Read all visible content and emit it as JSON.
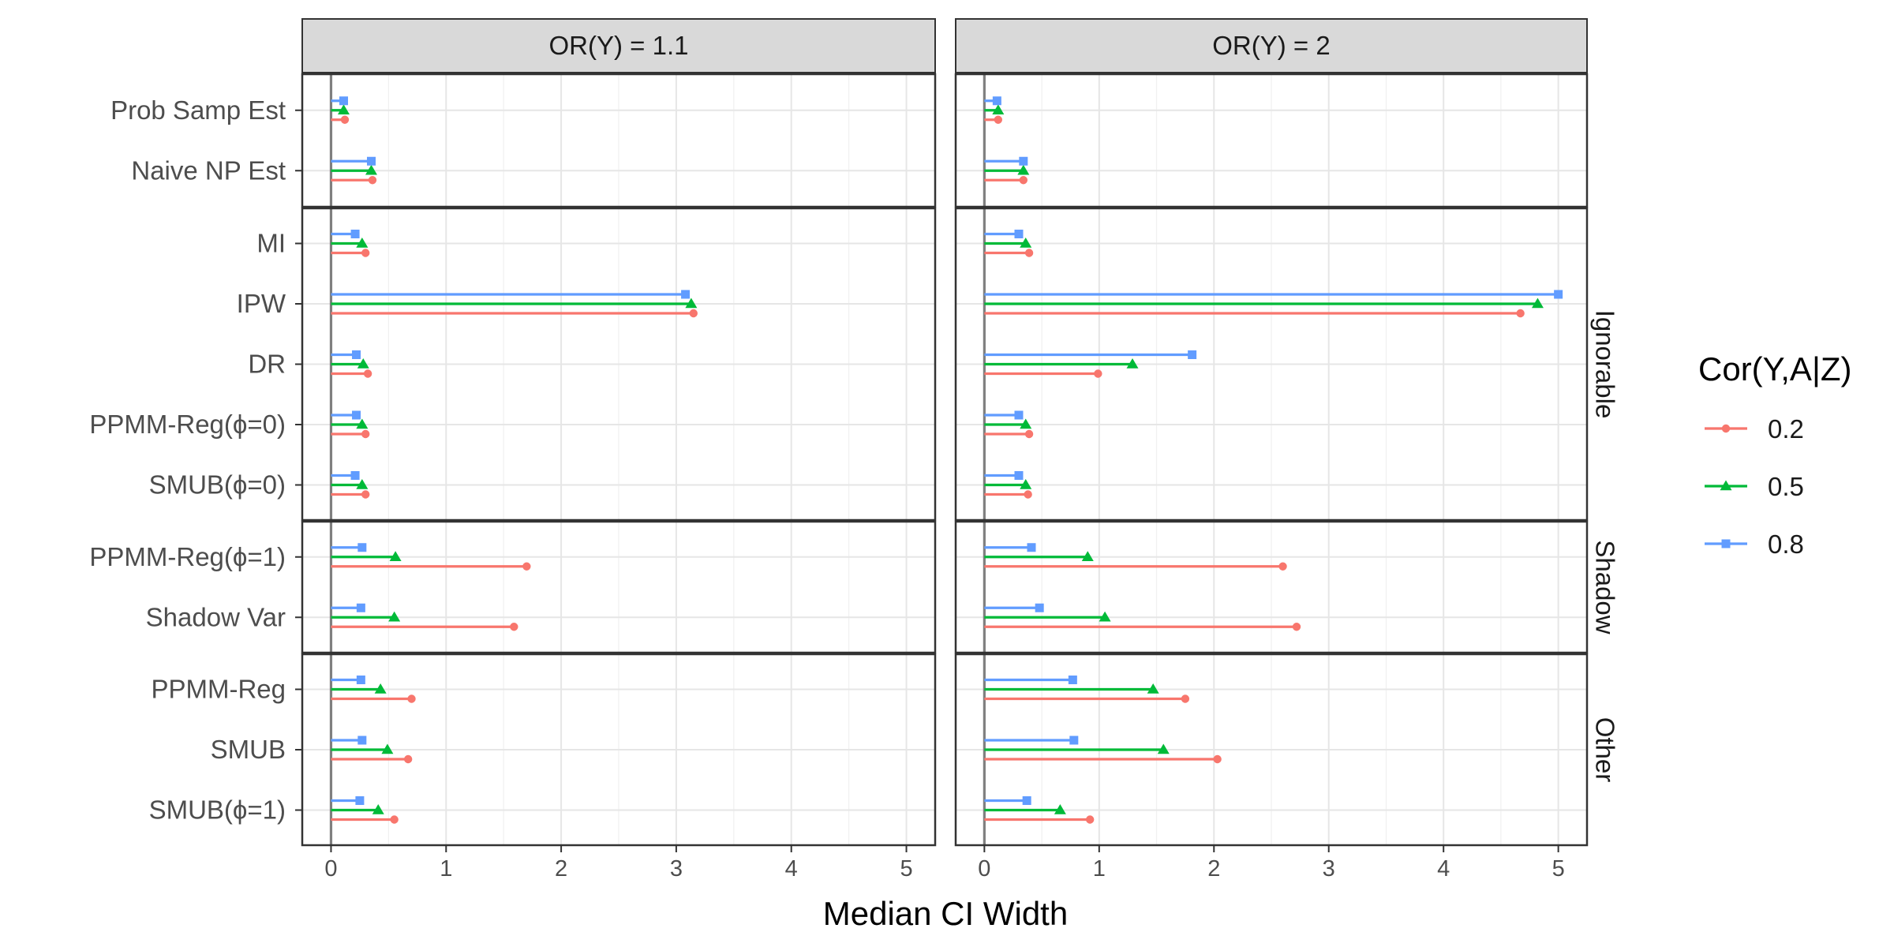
{
  "chart_data": {
    "type": "lollipop",
    "xlabel": "Median CI Width",
    "xlim": [
      -0.25,
      5.25
    ],
    "xticks": [
      0,
      1,
      2,
      3,
      4,
      5
    ],
    "grid": true,
    "columns": [
      "OR(Y) = 1.1",
      "OR(Y) = 2"
    ],
    "row_groups": [
      {
        "label": "",
        "methods": [
          "Prob Samp Est",
          "Naive NP Est"
        ]
      },
      {
        "label": "Ignorable",
        "methods": [
          "MI",
          "IPW",
          "DR",
          "PPMM-Reg(ϕ=0)",
          "SMUB(ϕ=0)"
        ]
      },
      {
        "label": "Shadow",
        "methods": [
          "PPMM-Reg(ϕ=1)",
          "Shadow Var"
        ]
      },
      {
        "label": "Other",
        "methods": [
          "PPMM-Reg",
          "SMUB",
          "SMUB(ϕ=1)"
        ]
      }
    ],
    "legend": {
      "title": "Cor(Y,A|Z)",
      "position": "right",
      "entries": [
        {
          "label": "0.2",
          "color": "#F8766D",
          "shape": "circle"
        },
        {
          "label": "0.5",
          "color": "#00BA38",
          "shape": "triangle"
        },
        {
          "label": "0.8",
          "color": "#619CFF",
          "shape": "square"
        }
      ]
    },
    "series": [
      {
        "name": "0.2",
        "color": "#F8766D",
        "shape": "circle",
        "values": {
          "OR(Y) = 1.1": {
            "Prob Samp Est": 0.12,
            "Naive NP Est": 0.36,
            "MI": 0.3,
            "IPW": 3.15,
            "DR": 0.32,
            "PPMM-Reg(ϕ=0)": 0.3,
            "SMUB(ϕ=0)": 0.3,
            "PPMM-Reg(ϕ=1)": 1.7,
            "Shadow Var": 1.59,
            "PPMM-Reg": 0.7,
            "SMUB": 0.67,
            "SMUB(ϕ=1)": 0.55
          },
          "OR(Y) = 2": {
            "Prob Samp Est": 0.12,
            "Naive NP Est": 0.34,
            "MI": 0.39,
            "IPW": 4.67,
            "DR": 0.99,
            "PPMM-Reg(ϕ=0)": 0.39,
            "SMUB(ϕ=0)": 0.38,
            "PPMM-Reg(ϕ=1)": 2.6,
            "Shadow Var": 2.72,
            "PPMM-Reg": 1.75,
            "SMUB": 2.03,
            "SMUB(ϕ=1)": 0.92
          }
        }
      },
      {
        "name": "0.5",
        "color": "#00BA38",
        "shape": "triangle",
        "values": {
          "OR(Y) = 1.1": {
            "Prob Samp Est": 0.11,
            "Naive NP Est": 0.35,
            "MI": 0.27,
            "IPW": 3.13,
            "DR": 0.28,
            "PPMM-Reg(ϕ=0)": 0.27,
            "SMUB(ϕ=0)": 0.27,
            "PPMM-Reg(ϕ=1)": 0.56,
            "Shadow Var": 0.55,
            "PPMM-Reg": 0.43,
            "SMUB": 0.49,
            "SMUB(ϕ=1)": 0.41
          },
          "OR(Y) = 2": {
            "Prob Samp Est": 0.12,
            "Naive NP Est": 0.34,
            "MI": 0.36,
            "IPW": 4.82,
            "DR": 1.29,
            "PPMM-Reg(ϕ=0)": 0.36,
            "SMUB(ϕ=0)": 0.36,
            "PPMM-Reg(ϕ=1)": 0.9,
            "Shadow Var": 1.05,
            "PPMM-Reg": 1.47,
            "SMUB": 1.56,
            "SMUB(ϕ=1)": 0.66
          }
        }
      },
      {
        "name": "0.8",
        "color": "#619CFF",
        "shape": "square",
        "values": {
          "OR(Y) = 1.1": {
            "Prob Samp Est": 0.11,
            "Naive NP Est": 0.35,
            "MI": 0.21,
            "IPW": 3.08,
            "DR": 0.22,
            "PPMM-Reg(ϕ=0)": 0.22,
            "SMUB(ϕ=0)": 0.21,
            "PPMM-Reg(ϕ=1)": 0.27,
            "Shadow Var": 0.26,
            "PPMM-Reg": 0.26,
            "SMUB": 0.27,
            "SMUB(ϕ=1)": 0.25
          },
          "OR(Y) = 2": {
            "Prob Samp Est": 0.11,
            "Naive NP Est": 0.34,
            "MI": 0.3,
            "IPW": 5.0,
            "DR": 1.81,
            "PPMM-Reg(ϕ=0)": 0.3,
            "SMUB(ϕ=0)": 0.3,
            "PPMM-Reg(ϕ=1)": 0.41,
            "Shadow Var": 0.48,
            "PPMM-Reg": 0.77,
            "SMUB": 0.78,
            "SMUB(ϕ=1)": 0.37
          }
        }
      }
    ]
  }
}
